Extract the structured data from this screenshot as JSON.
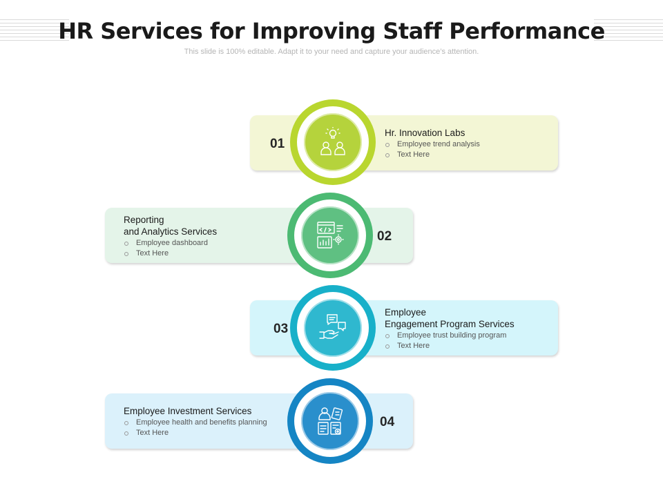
{
  "header": {
    "title": "HR Services for Improving Staff Performance",
    "subtitle": "This slide is 100% editable. Adapt it to your need and capture your audience’s attention."
  },
  "steps": [
    {
      "number": "01",
      "title": "Hr. Innovation Labs",
      "bullets": [
        "Employee trend analysis",
        "Text Here"
      ],
      "icon": "team-idea-icon",
      "colors": {
        "ring": "#b9d62f",
        "core": "#b5d33c",
        "card": "#f3f6d5"
      }
    },
    {
      "number": "02",
      "title": "Reporting\nand Analytics Services",
      "bullets": [
        "Employee dashboard",
        "Text Here"
      ],
      "icon": "analytics-dashboard-icon",
      "colors": {
        "ring": "#4cba73",
        "core": "#5fc082",
        "card": "#e4f4e9"
      }
    },
    {
      "number": "03",
      "title": "Employee\nEngagement Program Services",
      "bullets": [
        "Employee trust building program",
        "Text Here"
      ],
      "icon": "handshake-chat-icon",
      "colors": {
        "ring": "#18b0c9",
        "core": "#2fb8cf",
        "card": "#d4f5fb"
      }
    },
    {
      "number": "04",
      "title": "Employee Investment Services",
      "bullets": [
        "Employee health and benefits planning",
        "Text Here"
      ],
      "icon": "health-benefits-icon",
      "colors": {
        "ring": "#1585c4",
        "core": "#2a8fcc",
        "card": "#dbf1fb"
      }
    }
  ]
}
